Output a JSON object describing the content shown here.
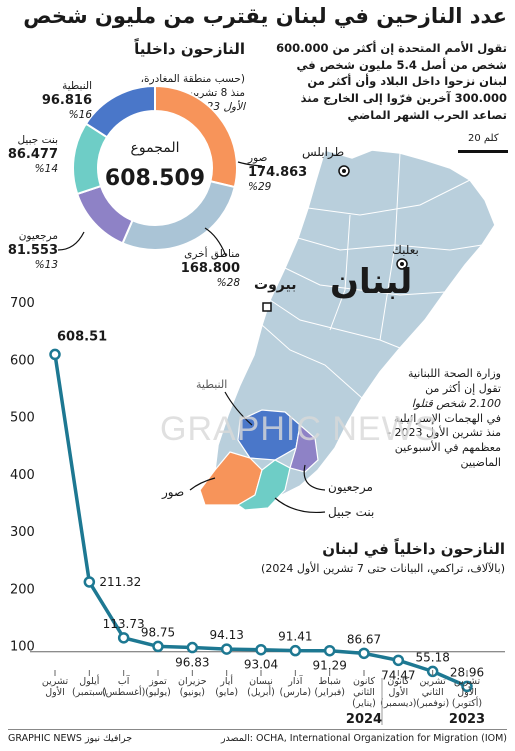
{
  "title": "عدد النازحين في لبنان يقترب من مليون شخص",
  "intro": "تقول الأمم المتحدة إن أكثر من 600.000 شخص من أصل 5.4 مليون شخص في لبنان نزحوا داخل البلاد وأن أكثر من 300.000 آخرين فرّوا إلى الخارج منذ تصاعد الحرب الشهر الماضي",
  "donut": {
    "title": "النازحون داخلياً",
    "subtitle_1": "(حسب منطقة المغادرة،",
    "subtitle_2": "منذ 8 تشرين",
    "subtitle_3": "الأول 2023)",
    "center_label": "المجموع",
    "center_value": "608.509",
    "segments": [
      {
        "name": "صور",
        "value": "174.863",
        "pct": "%29",
        "color": "#f7945a"
      },
      {
        "name": "مناطق أخرى",
        "value": "168.800",
        "pct": "%28",
        "color": "#aac4d6"
      },
      {
        "name": "مرجعيون",
        "value": "81.553",
        "pct": "%13",
        "color": "#8e82c6"
      },
      {
        "name": "بنت جبيل",
        "value": "86.477",
        "pct": "%14",
        "color": "#6ecdc6"
      },
      {
        "name": "النبطية",
        "value": "96.816",
        "pct": "%16",
        "color": "#4a77c9"
      }
    ]
  },
  "map": {
    "scale": "20 كلم",
    "country": "لبنان",
    "cities": {
      "tripoli": "طرابلس",
      "baalbek": "بعلبك",
      "beirut": "بيروت"
    },
    "districts": {
      "nabatieh": "النبطية",
      "marjayoun": "مرجعيون",
      "tyre": "صور",
      "bint_jbeil": "بنت جبيل"
    },
    "colors": {
      "land": "#b9cfdc",
      "border": "#ffffff",
      "tyre": "#f7945a",
      "nabatieh": "#4a77c9",
      "marjayoun": "#8e82c6",
      "bint_jbeil": "#6ecdc6"
    }
  },
  "ministry": {
    "line1": "وزارة الصحة اللبنانية",
    "line2": "تقول إن أكثر من",
    "line3": "2.100 شخص قتلوا",
    "line4": "في الهجمات الإسرائيلية",
    "line5": "منذ تشرين الأول 2023 -",
    "line6": "معظمهم في الأسبوعين",
    "line7": "الماضيين"
  },
  "watermark": "GRAPHIC NEWS",
  "chart_data": {
    "type": "line",
    "title": "النازحون داخلياً في لبنان",
    "subtitle": "(بالآلاف، تراكمي، البيانات حتى 7 تشرين الأول 2024)",
    "ylim": [
      0,
      700
    ],
    "yticks": [
      100,
      200,
      300,
      400,
      500,
      600,
      700
    ],
    "line_color": "#1d7892",
    "categories": [
      [
        "تشرين",
        "الأول"
      ],
      [
        "أيلول",
        "(سبتمبر)"
      ],
      [
        "آب",
        "(أغسطس)"
      ],
      [
        "تموز",
        "(يوليو)"
      ],
      [
        "حزيران",
        "(يونيو)"
      ],
      [
        "أيار",
        "(مايو)"
      ],
      [
        "نيسان",
        "(أبريل)"
      ],
      [
        "آذار",
        "(مارس)"
      ],
      [
        "شباط",
        "(فبراير)"
      ],
      [
        "كانون",
        "الثاني",
        "(يناير)"
      ],
      [
        "كانون",
        "الأول",
        "(ديسمبر)"
      ],
      [
        "تشرين",
        "الثاني",
        "(نوفمبر)"
      ],
      [
        "تشرين",
        "الأول",
        "(أكتوبر)"
      ]
    ],
    "values": [
      608.51,
      211.32,
      113.73,
      98.75,
      96.83,
      94.13,
      93.04,
      91.41,
      91.29,
      86.67,
      74.47,
      55.18,
      28.96
    ],
    "value_labels": [
      "608.51",
      "211.32",
      "113.73",
      "98.75",
      "96.83",
      "94.13",
      "93.04",
      "91.41",
      "91.29",
      "86.67",
      "74.47",
      "55.18",
      "28.96"
    ],
    "label_position": [
      "above",
      "right",
      "above",
      "above",
      "below",
      "above",
      "below",
      "above",
      "below",
      "above",
      "below",
      "above",
      "above"
    ],
    "year_labels": [
      "2024",
      "2023"
    ]
  },
  "footer": {
    "source": "المصدر: OCHA, International Organization for Migration (IOM)",
    "credit": "GRAPHIC NEWS جرافيك نيوز"
  }
}
